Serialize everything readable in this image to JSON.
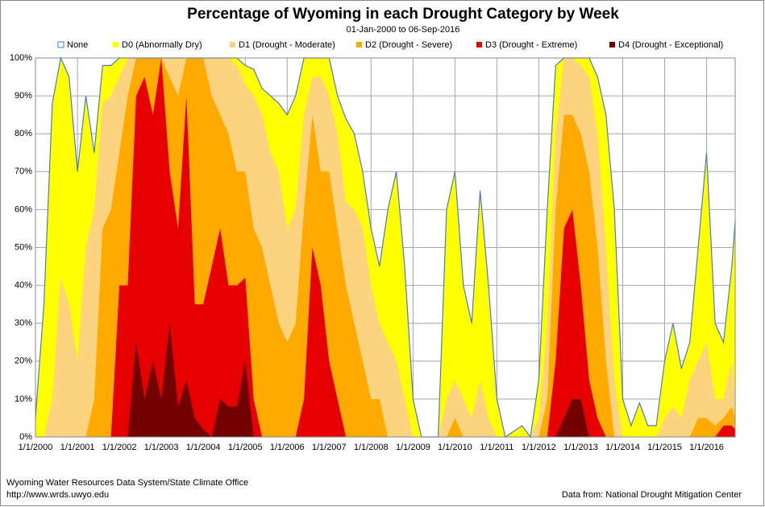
{
  "chart_data": {
    "type": "area",
    "title": "Percentage of Wyoming in each Drought Category by Week",
    "subtitle": "01-Jan-2000 to 06-Sep-2016",
    "footer_left": [
      "Wyoming Water Resources Data System/State  Climate Office",
      "http://www.wrds.uwyo.edu"
    ],
    "footer_right": "Data from: National Drought Mitigation Center",
    "x": [
      "2000-01-01",
      "2000-03-15",
      "2000-05-27",
      "2000-08-08",
      "2000-10-20",
      "2001-01-01",
      "2001-03-15",
      "2001-05-27",
      "2001-08-08",
      "2001-10-20",
      "2002-01-01",
      "2002-03-15",
      "2002-05-27",
      "2002-08-08",
      "2002-10-20",
      "2003-01-01",
      "2003-03-15",
      "2003-05-27",
      "2003-08-08",
      "2003-10-20",
      "2004-01-01",
      "2004-03-15",
      "2004-05-27",
      "2004-08-08",
      "2004-10-20",
      "2005-01-01",
      "2005-03-15",
      "2005-05-27",
      "2005-08-08",
      "2005-10-20",
      "2006-01-01",
      "2006-03-15",
      "2006-05-27",
      "2006-08-08",
      "2006-10-20",
      "2007-01-01",
      "2007-03-15",
      "2007-05-27",
      "2007-08-08",
      "2007-10-20",
      "2008-01-01",
      "2008-03-15",
      "2008-05-27",
      "2008-08-08",
      "2008-10-20",
      "2009-01-01",
      "2009-03-15",
      "2009-08-08",
      "2009-10-20",
      "2010-01-01",
      "2010-03-15",
      "2010-05-27",
      "2010-08-08",
      "2010-10-20",
      "2011-01-01",
      "2011-03-15",
      "2011-08-08",
      "2011-10-20",
      "2012-01-01",
      "2012-03-15",
      "2012-05-27",
      "2012-08-08",
      "2012-10-20",
      "2013-01-01",
      "2013-03-15",
      "2013-05-27",
      "2013-08-08",
      "2013-10-20",
      "2014-01-01",
      "2014-03-15",
      "2014-05-27",
      "2014-08-08",
      "2014-10-20",
      "2015-01-01",
      "2015-03-15",
      "2015-05-27",
      "2015-08-08",
      "2015-10-20",
      "2016-01-01",
      "2016-03-15",
      "2016-05-27",
      "2016-08-08",
      "2016-09-06"
    ],
    "series": [
      {
        "name": "D0 (Abnormally Dry)",
        "color": "#ffff00",
        "values": [
          5,
          35,
          88,
          100,
          95,
          70,
          90,
          75,
          98,
          98,
          100,
          100,
          100,
          100,
          100,
          100,
          100,
          100,
          100,
          100,
          100,
          100,
          100,
          100,
          100,
          98,
          97,
          92,
          90,
          88,
          85,
          90,
          100,
          100,
          100,
          100,
          90,
          84,
          80,
          70,
          55,
          45,
          60,
          70,
          45,
          10,
          0,
          0,
          60,
          70,
          40,
          30,
          65,
          40,
          10,
          0,
          3,
          0,
          15,
          60,
          98,
          100,
          100,
          100,
          100,
          95,
          85,
          60,
          10,
          3,
          9,
          3,
          3,
          20,
          30,
          18,
          25,
          50,
          75,
          30,
          25,
          45,
          57
        ]
      },
      {
        "name": "D1 (Drought - Moderate)",
        "color": "#fcd37f",
        "values": [
          0,
          0,
          10,
          42,
          35,
          20,
          50,
          60,
          88,
          90,
          95,
          100,
          100,
          100,
          100,
          100,
          100,
          100,
          100,
          100,
          100,
          100,
          100,
          100,
          98,
          93,
          90,
          85,
          75,
          70,
          55,
          60,
          85,
          95,
          95,
          90,
          80,
          62,
          60,
          55,
          40,
          30,
          25,
          20,
          10,
          0,
          0,
          0,
          10,
          15,
          10,
          5,
          15,
          5,
          0,
          0,
          0,
          0,
          5,
          30,
          80,
          100,
          100,
          98,
          95,
          80,
          50,
          15,
          0,
          0,
          0,
          0,
          0,
          5,
          8,
          5,
          15,
          20,
          25,
          10,
          10,
          20,
          10
        ]
      },
      {
        "name": "D2 (Drought - Severe)",
        "color": "#ffaa00",
        "values": [
          0,
          0,
          0,
          0,
          0,
          0,
          0,
          10,
          55,
          60,
          75,
          90,
          100,
          100,
          100,
          100,
          95,
          90,
          100,
          100,
          100,
          90,
          85,
          80,
          70,
          70,
          55,
          50,
          40,
          30,
          25,
          30,
          60,
          85,
          70,
          70,
          55,
          40,
          30,
          20,
          10,
          10,
          0,
          0,
          0,
          0,
          0,
          0,
          0,
          5,
          0,
          0,
          0,
          0,
          0,
          0,
          0,
          0,
          0,
          10,
          60,
          85,
          85,
          80,
          70,
          50,
          20,
          0,
          0,
          0,
          0,
          0,
          0,
          0,
          0,
          0,
          0,
          5,
          5,
          3,
          5,
          8,
          5
        ]
      },
      {
        "name": "D3 (Drought - Extreme)",
        "color": "#e60000",
        "values": [
          0,
          0,
          0,
          0,
          0,
          0,
          0,
          0,
          0,
          0,
          40,
          40,
          90,
          95,
          85,
          100,
          70,
          55,
          90,
          35,
          35,
          45,
          55,
          40,
          40,
          42,
          10,
          0,
          0,
          0,
          0,
          0,
          10,
          50,
          40,
          20,
          10,
          0,
          0,
          0,
          0,
          0,
          0,
          0,
          0,
          0,
          0,
          0,
          0,
          0,
          0,
          0,
          0,
          0,
          0,
          0,
          0,
          0,
          0,
          0,
          20,
          55,
          60,
          40,
          15,
          5,
          0,
          0,
          0,
          0,
          0,
          0,
          0,
          0,
          0,
          0,
          0,
          0,
          0,
          0,
          3,
          3,
          2
        ]
      },
      {
        "name": "D4 (Drought - Exceptional)",
        "color": "#730000",
        "values": [
          0,
          0,
          0,
          0,
          0,
          0,
          0,
          0,
          0,
          0,
          0,
          0,
          25,
          10,
          20,
          10,
          30,
          8,
          15,
          5,
          2,
          0,
          10,
          8,
          8,
          20,
          0,
          0,
          0,
          0,
          0,
          0,
          0,
          0,
          0,
          0,
          0,
          0,
          0,
          0,
          0,
          0,
          0,
          0,
          0,
          0,
          0,
          0,
          0,
          0,
          0,
          0,
          0,
          0,
          0,
          0,
          0,
          0,
          0,
          0,
          0,
          5,
          10,
          10,
          0,
          0,
          0,
          0,
          0,
          0,
          0,
          0,
          0,
          0,
          0,
          0,
          0,
          0,
          0,
          0,
          0,
          0,
          0
        ]
      },
      {
        "name": "None",
        "color": "#4a7ebb",
        "values": [
          5,
          35,
          88,
          100,
          95,
          70,
          90,
          75,
          98,
          98,
          100,
          100,
          100,
          100,
          100,
          100,
          100,
          100,
          100,
          100,
          100,
          100,
          100,
          100,
          100,
          98,
          97,
          92,
          90,
          88,
          85,
          90,
          100,
          100,
          100,
          100,
          90,
          84,
          80,
          70,
          55,
          45,
          60,
          70,
          45,
          10,
          0,
          0,
          60,
          70,
          40,
          30,
          65,
          40,
          10,
          0,
          3,
          0,
          15,
          60,
          98,
          100,
          100,
          100,
          100,
          95,
          85,
          60,
          10,
          3,
          9,
          3,
          3,
          20,
          30,
          18,
          25,
          50,
          75,
          30,
          25,
          45,
          57
        ]
      }
    ],
    "legend_order": [
      5,
      0,
      1,
      2,
      3,
      4
    ],
    "xlim": [
      "2000-01-01",
      "2016-09-06"
    ],
    "xticks": [
      {
        "value": "2000-01-01",
        "label": "1/1/2000"
      },
      {
        "value": "2001-01-01",
        "label": "1/1/2001"
      },
      {
        "value": "2002-01-01",
        "label": "1/1/2002"
      },
      {
        "value": "2003-01-01",
        "label": "1/1/2003"
      },
      {
        "value": "2004-01-01",
        "label": "1/1/2004"
      },
      {
        "value": "2005-01-01",
        "label": "1/1/2005"
      },
      {
        "value": "2006-01-01",
        "label": "1/1/2006"
      },
      {
        "value": "2007-01-01",
        "label": "1/1/2007"
      },
      {
        "value": "2008-01-01",
        "label": "1/1/2008"
      },
      {
        "value": "2009-01-01",
        "label": "1/1/2009"
      },
      {
        "value": "2010-01-01",
        "label": "1/1/2010"
      },
      {
        "value": "2011-01-01",
        "label": "1/1/2011"
      },
      {
        "value": "2012-01-01",
        "label": "1/1/2012"
      },
      {
        "value": "2013-01-01",
        "label": "1/1/2013"
      },
      {
        "value": "2014-01-01",
        "label": "1/1/2014"
      },
      {
        "value": "2015-01-01",
        "label": "1/1/2015"
      },
      {
        "value": "2016-01-01",
        "label": "1/1/2016"
      }
    ],
    "ylim": [
      0,
      100
    ],
    "yticks": [
      {
        "value": 0,
        "label": "0%"
      },
      {
        "value": 10,
        "label": "10%"
      },
      {
        "value": 20,
        "label": "20%"
      },
      {
        "value": 30,
        "label": "30%"
      },
      {
        "value": 40,
        "label": "40%"
      },
      {
        "value": 50,
        "label": "50%"
      },
      {
        "value": 60,
        "label": "60%"
      },
      {
        "value": 70,
        "label": "70%"
      },
      {
        "value": 80,
        "label": "80%"
      },
      {
        "value": 90,
        "label": "90%"
      },
      {
        "value": 100,
        "label": "100%"
      }
    ],
    "grid": true
  }
}
